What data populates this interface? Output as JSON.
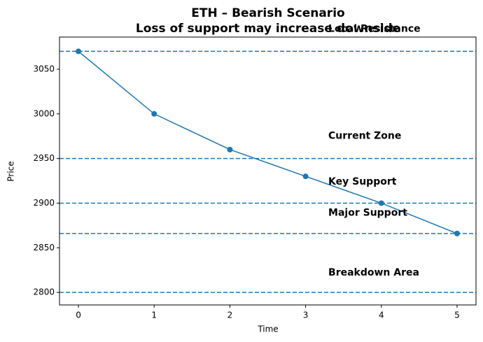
{
  "chart_data": {
    "type": "line",
    "title": "ETH – Bearish Scenario",
    "subtitle": "Loss of support may increase downside",
    "x_label": "Time",
    "y_label": "Price",
    "x": [
      0,
      1,
      2,
      3,
      4,
      5
    ],
    "values": [
      3070,
      3000,
      2960,
      2930,
      2900,
      2866
    ],
    "color": "#1f77b4",
    "xlim": [
      -0.25,
      5.25
    ],
    "xticks": [
      0,
      1,
      2,
      3,
      4,
      5
    ],
    "ylim": [
      2786,
      3086
    ],
    "yticks": [
      2800,
      2850,
      2900,
      2950,
      3000,
      3050
    ],
    "hlines": [
      3070,
      2950,
      2900,
      2866,
      2800
    ],
    "annotations": [
      {
        "text": "Local Resistance",
        "x": 3.3,
        "y": 3095
      },
      {
        "text": "Current Zone",
        "x": 3.3,
        "y": 2975
      },
      {
        "text": "Key Support",
        "x": 3.3,
        "y": 2924
      },
      {
        "text": "Major Support",
        "x": 3.3,
        "y": 2889
      },
      {
        "text": "Breakdown Area",
        "x": 3.3,
        "y": 2822
      }
    ]
  }
}
